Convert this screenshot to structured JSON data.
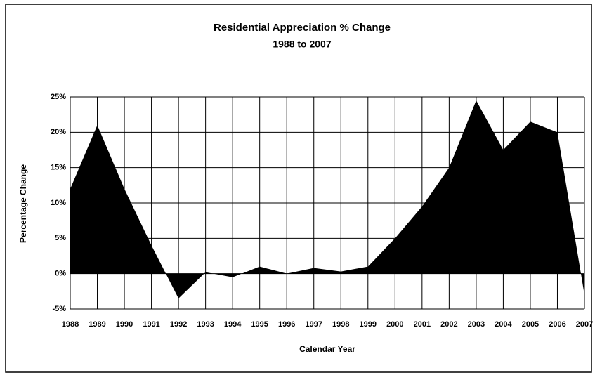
{
  "chart_data": {
    "type": "area",
    "title": "Residential Appreciation % Change",
    "subtitle": "1988 to 2007",
    "x_label": "Calendar Year",
    "y_label": "Percentage Change",
    "categories": [
      "1988",
      "1989",
      "1990",
      "1991",
      "1992",
      "1993",
      "1994",
      "1995",
      "1996",
      "1997",
      "1998",
      "1999",
      "2000",
      "2001",
      "2002",
      "2003",
      "2004",
      "2005",
      "2006",
      "2007"
    ],
    "values": [
      12,
      21,
      12,
      4,
      -3.5,
      0.2,
      -0.5,
      1,
      0,
      0.8,
      0.3,
      1,
      5,
      9.5,
      15,
      24.5,
      17.5,
      21.5,
      20,
      -3
    ],
    "color": "#000000",
    "ylim": [
      -5,
      25
    ],
    "yticks": [
      {
        "value": -5,
        "label": "-5%"
      },
      {
        "value": 0,
        "label": "0%"
      },
      {
        "value": 5,
        "label": "5%"
      },
      {
        "value": 10,
        "label": "10%"
      },
      {
        "value": 15,
        "label": "15%"
      },
      {
        "value": 20,
        "label": "20%"
      },
      {
        "value": 25,
        "label": "25%"
      }
    ],
    "grid": true
  }
}
